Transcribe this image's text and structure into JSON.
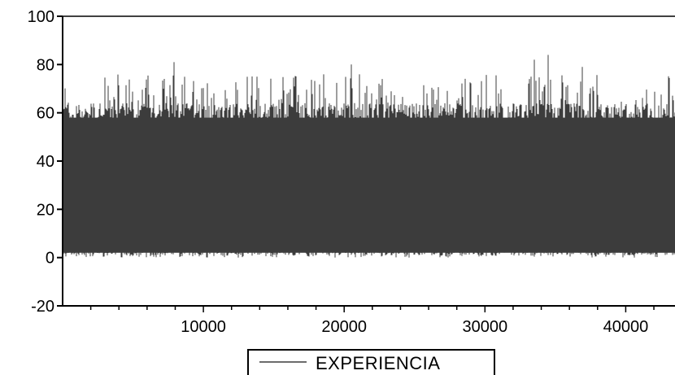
{
  "chart_data": {
    "type": "line",
    "title": "",
    "xlabel": "",
    "ylabel": "",
    "xlim": [
      1,
      43500
    ],
    "ylim": [
      -20,
      100
    ],
    "yticks": [
      -20,
      0,
      20,
      40,
      60,
      80,
      100
    ],
    "ytick_labels": [
      "-20",
      "0",
      "20",
      "40",
      "60",
      "80",
      "100"
    ],
    "xticks": [
      10000,
      20000,
      30000,
      40000
    ],
    "xtick_labels": [
      "10000",
      "20000",
      "30000",
      "40000"
    ],
    "grid": false,
    "legend_position": "bottom-center",
    "series": [
      {
        "name": "EXPERIENCIA",
        "color": "#3c3c3c",
        "observations": 43500,
        "typical_range": [
          2,
          58
        ],
        "min": 0,
        "max": 84,
        "notable_peaks": [
          {
            "x": 7900,
            "y": 81
          },
          {
            "x": 20500,
            "y": 80
          },
          {
            "x": 34500,
            "y": 84
          },
          {
            "x": 33500,
            "y": 82
          },
          {
            "x": 36900,
            "y": 79
          }
        ]
      }
    ]
  }
}
